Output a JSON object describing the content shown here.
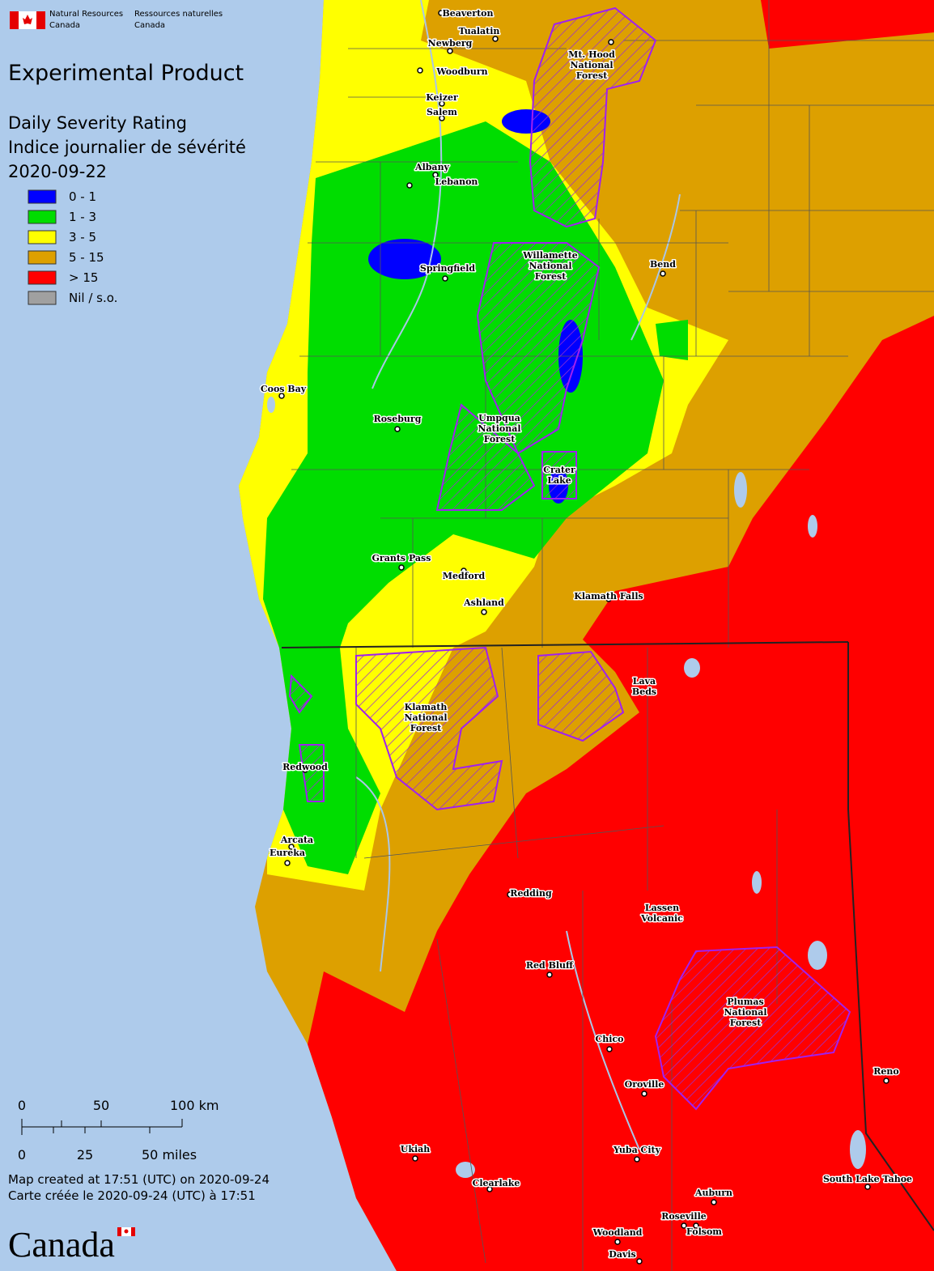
{
  "header": {
    "agency_en": [
      "Natural Resources",
      "Canada"
    ],
    "agency_fr": [
      "Ressources naturelles",
      "Canada"
    ]
  },
  "title": "Experimental Product",
  "subtitle": [
    "Daily Severity Rating",
    "Indice journalier de sévérité"
  ],
  "date": "2020-09-22",
  "legend": [
    {
      "color": "#0000ff",
      "label": "0 - 1"
    },
    {
      "color": "#00dd00",
      "label": "1 - 3"
    },
    {
      "color": "#ffff00",
      "label": "3 - 5"
    },
    {
      "color": "#dda000",
      "label": "5 - 15"
    },
    {
      "color": "#ff0000",
      "label": "> 15"
    },
    {
      "color": "#a0a0a0",
      "label": "Nil / s.o."
    }
  ],
  "scale": {
    "km": [
      "0",
      "50",
      "100 km"
    ],
    "miles": [
      "0",
      "25",
      "50 miles"
    ]
  },
  "footer": [
    "Map created at 17:51 (UTC) on 2020-09-24",
    "Carte créée le 2020-09-24 (UTC) à 17:51"
  ],
  "wordmark": "Canada",
  "places": [
    {
      "lines": [
        "Beaverton"
      ]
    },
    {
      "lines": [
        "Tualatin"
      ]
    },
    {
      "lines": [
        "Newberg"
      ]
    },
    {
      "lines": [
        "Mt. Hood",
        "National",
        "Forest"
      ]
    },
    {
      "lines": [
        "Woodburn"
      ]
    },
    {
      "lines": [
        "Keizer"
      ]
    },
    {
      "lines": [
        "Salem"
      ]
    },
    {
      "lines": [
        "Albany"
      ]
    },
    {
      "lines": [
        "Lebanon"
      ]
    },
    {
      "lines": [
        "Willamette",
        "National",
        "Forest"
      ]
    },
    {
      "lines": [
        "Bend"
      ]
    },
    {
      "lines": [
        "Springfield"
      ]
    },
    {
      "lines": [
        "Coos Bay"
      ]
    },
    {
      "lines": [
        "Roseburg"
      ]
    },
    {
      "lines": [
        "Umpqua",
        "National",
        "Forest"
      ]
    },
    {
      "lines": [
        "Crater",
        "Lake"
      ]
    },
    {
      "lines": [
        "Grants Pass"
      ]
    },
    {
      "lines": [
        "Medford"
      ]
    },
    {
      "lines": [
        "Ashland"
      ]
    },
    {
      "lines": [
        "Klamath Falls"
      ]
    },
    {
      "lines": [
        "Lava",
        "Beds"
      ]
    },
    {
      "lines": [
        "Klamath",
        "National",
        "Forest"
      ]
    },
    {
      "lines": [
        "Redwood"
      ]
    },
    {
      "lines": [
        "Arcata"
      ]
    },
    {
      "lines": [
        "Eureka"
      ]
    },
    {
      "lines": [
        "Redding"
      ]
    },
    {
      "lines": [
        "Lassen",
        "Volcanic"
      ]
    },
    {
      "lines": [
        "Red Bluff"
      ]
    },
    {
      "lines": [
        "Plumas",
        "National",
        "Forest"
      ]
    },
    {
      "lines": [
        "Chico"
      ]
    },
    {
      "lines": [
        "Reno"
      ]
    },
    {
      "lines": [
        "Oroville"
      ]
    },
    {
      "lines": [
        "Ukiah"
      ]
    },
    {
      "lines": [
        "Yuba City"
      ]
    },
    {
      "lines": [
        "Clearlake"
      ]
    },
    {
      "lines": [
        "South Lake Tahoe"
      ]
    },
    {
      "lines": [
        "Auburn"
      ]
    },
    {
      "lines": [
        "Roseville"
      ]
    },
    {
      "lines": [
        "Folsom"
      ]
    },
    {
      "lines": [
        "Woodland"
      ]
    },
    {
      "lines": [
        "Davis"
      ]
    }
  ]
}
